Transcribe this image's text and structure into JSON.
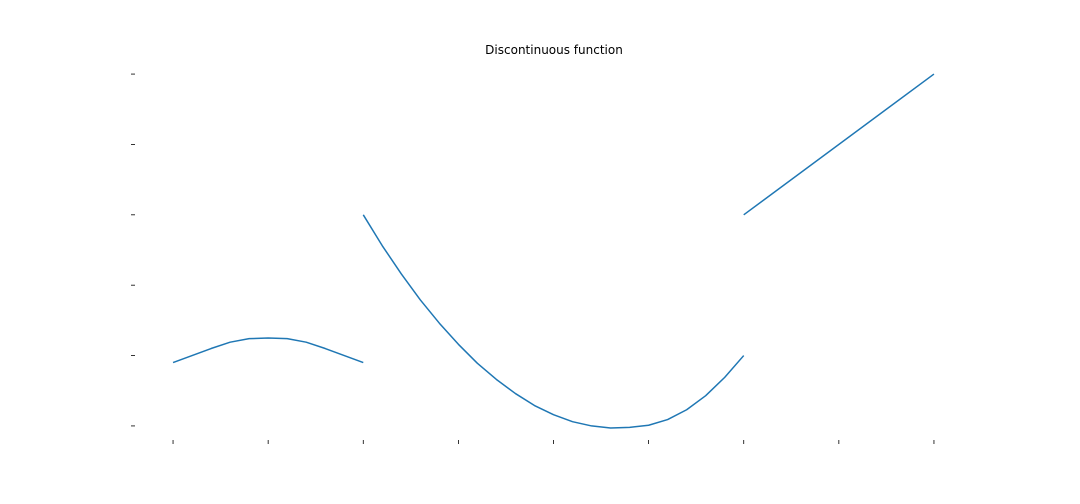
{
  "chart_data": {
    "type": "line",
    "title": "Discontinuous function",
    "xlabel": "",
    "ylabel": "",
    "xlim": [
      -2.2,
      2.2
    ],
    "ylim": [
      -0.2,
      5.2
    ],
    "x_ticks": [
      -2,
      -1.5,
      -1,
      -0.5,
      0,
      0.5,
      1,
      1.5,
      2
    ],
    "y_ticks": [
      0,
      1,
      2,
      3,
      4,
      5
    ],
    "tick_labels_visible": false,
    "spines_visible": false,
    "grid": false,
    "color": "#1f77b4",
    "series": [
      {
        "x": [
          -2.0,
          -1.9,
          -1.8,
          -1.7,
          -1.6,
          -1.5,
          -1.4,
          -1.3,
          -1.2,
          -1.1,
          -1.0
        ],
        "y": [
          0.9,
          1.0,
          1.1,
          1.19,
          1.24,
          1.25,
          1.24,
          1.19,
          1.1,
          1.0,
          0.9
        ]
      },
      {
        "x": [
          -1.0,
          -0.9,
          -0.8,
          -0.7,
          -0.6,
          -0.5,
          -0.4,
          -0.3,
          -0.2,
          -0.1,
          0.0,
          0.1,
          0.2,
          0.3,
          0.4,
          0.5,
          0.6,
          0.7,
          0.8,
          0.9,
          1.0
        ],
        "y": [
          3.0,
          2.56,
          2.16,
          1.79,
          1.46,
          1.16,
          0.89,
          0.66,
          0.46,
          0.29,
          0.16,
          0.06,
          0.0,
          -0.03,
          -0.02,
          0.01,
          0.09,
          0.23,
          0.43,
          0.69,
          1.0
        ]
      },
      {
        "x": [
          1.0,
          2.0
        ],
        "y": [
          3.0,
          5.0
        ]
      }
    ]
  }
}
